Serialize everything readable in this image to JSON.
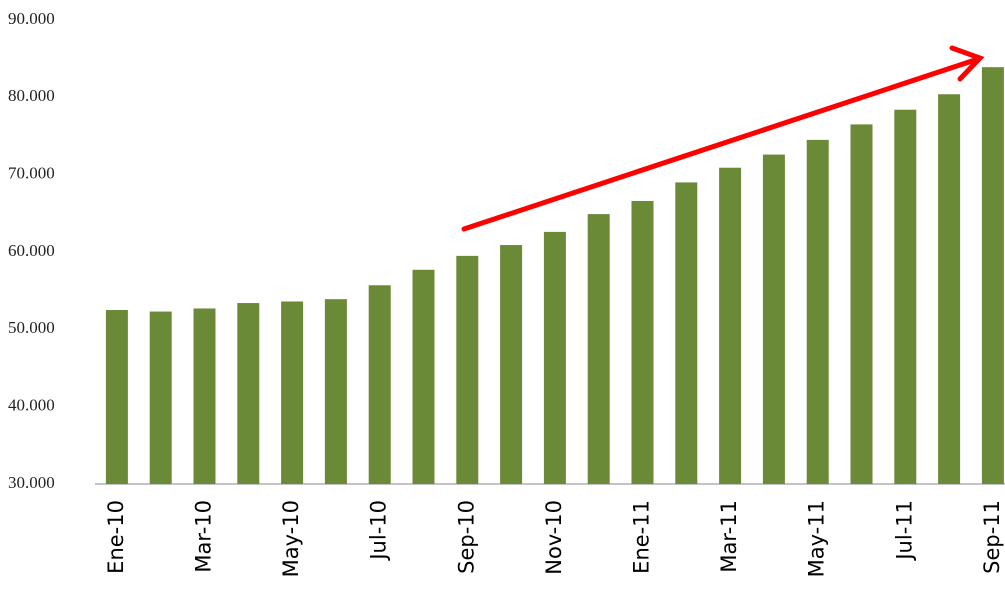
{
  "chart_data": {
    "type": "bar",
    "categories": [
      "Ene-10",
      null,
      "Mar-10",
      null,
      "May-10",
      null,
      "Jul-10",
      null,
      "Sep-10",
      null,
      "Nov-10",
      null,
      "Ene-11",
      null,
      "Mar-11",
      null,
      "May-11",
      null,
      "Jul-11",
      null,
      "Sep-11"
    ],
    "values": [
      52500,
      52300,
      52700,
      53400,
      53600,
      53900,
      55700,
      57700,
      59500,
      60900,
      62600,
      64900,
      66600,
      69000,
      70900,
      72600,
      74500,
      76500,
      78400,
      80400,
      83900
    ],
    "color": "#6b8a38",
    "ylim": [
      30000,
      90000
    ],
    "yticks": [
      {
        "value": 30000,
        "label": "30.000"
      },
      {
        "value": 40000,
        "label": "40.000"
      },
      {
        "value": 50000,
        "label": "50.000"
      },
      {
        "value": 60000,
        "label": "60.000"
      },
      {
        "value": 70000,
        "label": "70.000"
      },
      {
        "value": 80000,
        "label": "80.000"
      },
      {
        "value": 90000,
        "label": "90.000"
      }
    ],
    "grid": false
  }
}
